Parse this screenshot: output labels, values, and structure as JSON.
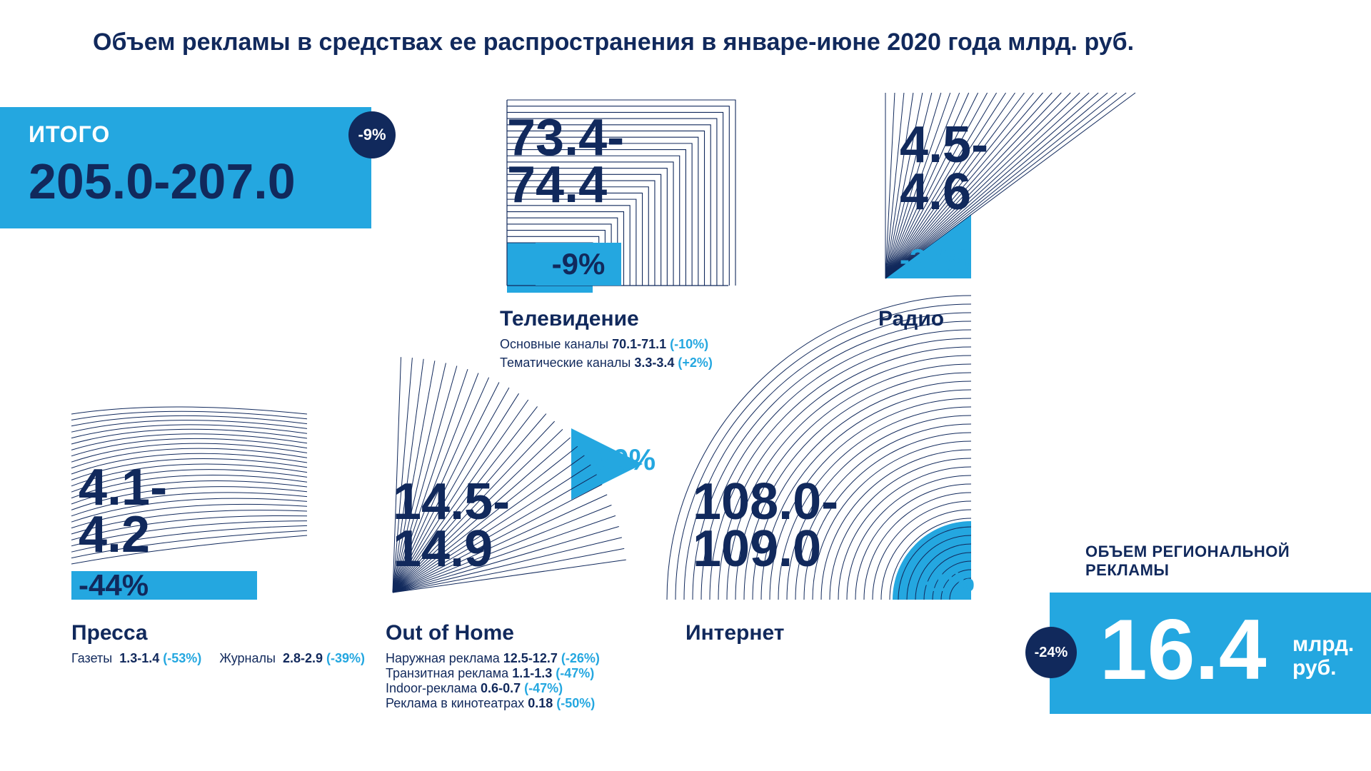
{
  "colors": {
    "darkblue": "#11295c",
    "cyan": "#24a7e0",
    "white": "#ffffff",
    "line": "#11295c",
    "cyan_fill": "#24a7e0"
  },
  "typography": {
    "title_fontsize": 34,
    "bignum_fontsize": 72,
    "cat_fontsize": 30,
    "sub_fontsize": 18
  },
  "header": {
    "title": "Объем рекламы в средствах ее распространения в январе-июне 2020 года млрд. руб."
  },
  "total": {
    "label": "ИТОГО",
    "value": "205.0-207.0",
    "delta": "-9%",
    "box_color": "#24a7e0",
    "text_color": "#11295c",
    "label_color": "#ffffff",
    "badge_bg": "#11295c"
  },
  "tv": {
    "value": "73.4-\n74.4",
    "delta": "-9%",
    "title": "Телевидение",
    "sub1_label": "Основные каналы",
    "sub1_val": "70.1-71.1",
    "sub1_pct": "(-10%)",
    "sub2_label": "Тематические каналы",
    "sub2_val": "3.3-3.4",
    "sub2_pct": "(+2%)"
  },
  "radio": {
    "value": "4.5-\n4.6",
    "delta": "-37%",
    "title": "Радио"
  },
  "press": {
    "value": "4.1-\n4.2",
    "delta": "-44%",
    "title": "Пресса",
    "sub1_label": "Газеты",
    "sub1_val": "1.3-1.4",
    "sub1_pct": "(-53%)",
    "sub2_label": "Журналы",
    "sub2_val": "2.8-2.9",
    "sub2_pct": "(-39%)"
  },
  "ooh": {
    "value": "14.5-\n14.9",
    "delta": "-30%",
    "title": "Out of Home",
    "sub1_label": "Наружная реклама",
    "sub1_val": "12.5-12.7",
    "sub1_pct": "(-26%)",
    "sub2_label": "Транзитная реклама",
    "sub2_val": "1.1-1.3",
    "sub2_pct": "(-47%)",
    "sub3_label": "Indoor-реклама",
    "sub3_val": "0.6-0.7",
    "sub3_pct": "(-47%)",
    "sub4_label": "Реклама в кинотеатрах",
    "sub4_val": "0.18",
    "sub4_pct": "(-50%)"
  },
  "internet": {
    "value": "108.0-\n109.0",
    "delta": "-1%",
    "title": "Интернет"
  },
  "regional": {
    "label": "ОБЪЕМ РЕГИОНАЛЬНОЙ\nРЕКЛАМЫ",
    "value": "16.4",
    "unit": "млрд.\nруб.",
    "delta": "-24%"
  },
  "decor": {
    "tv_lines": 24,
    "radio_lines": 28,
    "press_lines": 26,
    "ooh_lines": 30,
    "internet_lines": 34
  }
}
